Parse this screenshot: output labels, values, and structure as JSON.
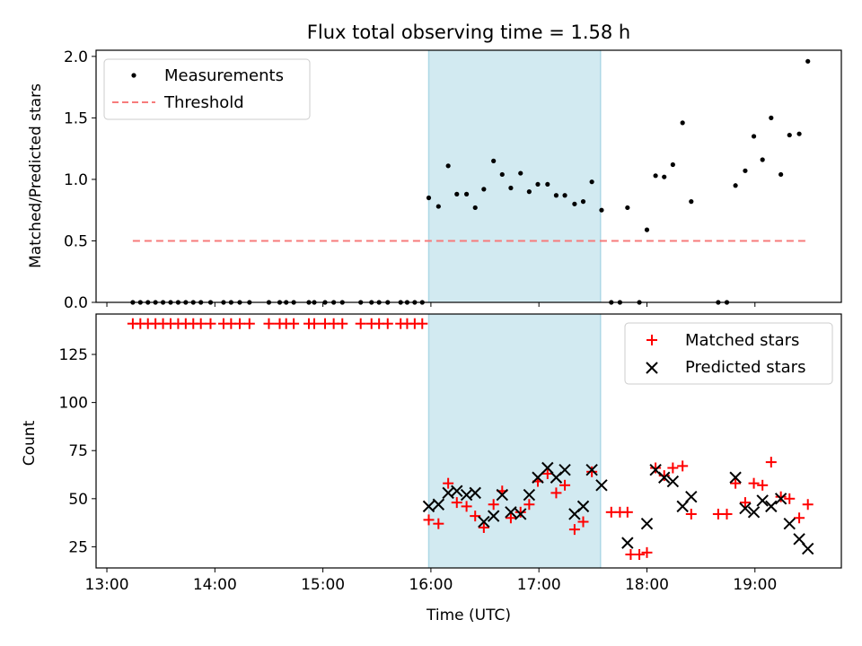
{
  "chart_data": [
    {
      "type": "scatter",
      "title": "Flux total observing time = 1.58 h",
      "xlabel": "",
      "ylabel": "Matched/Predicted stars",
      "xlim": [
        12.9,
        19.8
      ],
      "ylim": [
        0,
        2.05
      ],
      "yticks": [
        0,
        0.5,
        1.0,
        1.5,
        2.0
      ],
      "ytick_labels": [
        "0.0",
        "0.5",
        "1.0",
        "1.5",
        "2.0"
      ],
      "shaded_span": [
        15.98,
        17.57
      ],
      "threshold": {
        "name": "Threshold",
        "value": 0.5,
        "x_range": [
          13.24,
          19.5
        ],
        "color": "#f77b7b"
      },
      "legend": {
        "placement": "top-left",
        "entries": [
          "Measurements",
          "Threshold"
        ]
      },
      "series": [
        {
          "name": "Measurements",
          "marker": "dot",
          "color": "#000000",
          "points": [
            [
              13.24,
              0
            ],
            [
              13.31,
              0
            ],
            [
              13.38,
              0
            ],
            [
              13.45,
              0
            ],
            [
              13.52,
              0
            ],
            [
              13.59,
              0
            ],
            [
              13.66,
              0
            ],
            [
              13.73,
              0
            ],
            [
              13.8,
              0
            ],
            [
              13.87,
              0
            ],
            [
              13.96,
              0
            ],
            [
              14.08,
              0
            ],
            [
              14.15,
              0
            ],
            [
              14.23,
              0
            ],
            [
              14.32,
              0
            ],
            [
              14.5,
              0
            ],
            [
              14.6,
              0
            ],
            [
              14.66,
              0
            ],
            [
              14.73,
              0
            ],
            [
              14.87,
              0
            ],
            [
              14.92,
              0
            ],
            [
              15.02,
              0
            ],
            [
              15.1,
              0
            ],
            [
              15.18,
              0
            ],
            [
              15.35,
              0
            ],
            [
              15.45,
              0
            ],
            [
              15.52,
              0
            ],
            [
              15.6,
              0
            ],
            [
              15.72,
              0
            ],
            [
              15.78,
              0
            ],
            [
              15.85,
              0
            ],
            [
              15.92,
              0
            ],
            [
              15.98,
              0.85
            ],
            [
              16.07,
              0.78
            ],
            [
              16.16,
              1.11
            ],
            [
              16.24,
              0.88
            ],
            [
              16.33,
              0.88
            ],
            [
              16.41,
              0.77
            ],
            [
              16.49,
              0.92
            ],
            [
              16.58,
              1.15
            ],
            [
              16.66,
              1.04
            ],
            [
              16.74,
              0.93
            ],
            [
              16.83,
              1.05
            ],
            [
              16.91,
              0.9
            ],
            [
              16.99,
              0.96
            ],
            [
              17.08,
              0.96
            ],
            [
              17.16,
              0.87
            ],
            [
              17.24,
              0.87
            ],
            [
              17.33,
              0.8
            ],
            [
              17.41,
              0.82
            ],
            [
              17.49,
              0.98
            ],
            [
              17.58,
              0.75
            ],
            [
              17.67,
              0
            ],
            [
              17.75,
              0
            ],
            [
              17.82,
              0.77
            ],
            [
              17.93,
              0
            ],
            [
              18.0,
              0.59
            ],
            [
              18.08,
              1.03
            ],
            [
              18.16,
              1.02
            ],
            [
              18.24,
              1.12
            ],
            [
              18.33,
              1.46
            ],
            [
              18.41,
              0.82
            ],
            [
              18.66,
              0
            ],
            [
              18.74,
              0
            ],
            [
              18.82,
              0.95
            ],
            [
              18.91,
              1.07
            ],
            [
              18.99,
              1.35
            ],
            [
              19.07,
              1.16
            ],
            [
              19.15,
              1.5
            ],
            [
              19.24,
              1.04
            ],
            [
              19.32,
              1.36
            ],
            [
              19.41,
              1.37
            ],
            [
              19.49,
              1.96
            ]
          ]
        }
      ]
    },
    {
      "type": "scatter",
      "title": "",
      "xlabel": "Time (UTC)",
      "ylabel": "Count",
      "xlim": [
        12.9,
        19.8
      ],
      "ylim": [
        14,
        146
      ],
      "yticks": [
        25,
        50,
        75,
        100,
        125
      ],
      "ytick_labels": [
        "25",
        "50",
        "75",
        "100",
        "125"
      ],
      "xticks": [
        13,
        14,
        15,
        16,
        17,
        18,
        19
      ],
      "xtick_labels": [
        "13:00",
        "14:00",
        "15:00",
        "16:00",
        "17:00",
        "18:00",
        "19:00"
      ],
      "shaded_span": [
        15.98,
        17.57
      ],
      "legend": {
        "placement": "top-right",
        "entries": [
          "Matched stars",
          "Predicted stars"
        ]
      },
      "series": [
        {
          "name": "Matched stars",
          "marker": "plus",
          "color": "#ff0000",
          "points": [
            [
              13.24,
              141
            ],
            [
              13.31,
              141
            ],
            [
              13.38,
              141
            ],
            [
              13.45,
              141
            ],
            [
              13.52,
              141
            ],
            [
              13.59,
              141
            ],
            [
              13.66,
              141
            ],
            [
              13.73,
              141
            ],
            [
              13.8,
              141
            ],
            [
              13.87,
              141
            ],
            [
              13.96,
              141
            ],
            [
              14.08,
              141
            ],
            [
              14.15,
              141
            ],
            [
              14.23,
              141
            ],
            [
              14.32,
              141
            ],
            [
              14.5,
              141
            ],
            [
              14.6,
              141
            ],
            [
              14.66,
              141
            ],
            [
              14.73,
              141
            ],
            [
              14.87,
              141
            ],
            [
              14.92,
              141
            ],
            [
              15.02,
              141
            ],
            [
              15.1,
              141
            ],
            [
              15.18,
              141
            ],
            [
              15.35,
              141
            ],
            [
              15.45,
              141
            ],
            [
              15.52,
              141
            ],
            [
              15.6,
              141
            ],
            [
              15.72,
              141
            ],
            [
              15.78,
              141
            ],
            [
              15.85,
              141
            ],
            [
              15.92,
              141
            ],
            [
              15.98,
              39
            ],
            [
              16.07,
              37
            ],
            [
              16.16,
              58
            ],
            [
              16.24,
              48
            ],
            [
              16.33,
              46
            ],
            [
              16.41,
              41
            ],
            [
              16.49,
              35
            ],
            [
              16.58,
              47
            ],
            [
              16.66,
              54
            ],
            [
              16.74,
              40
            ],
            [
              16.83,
              43
            ],
            [
              16.91,
              47
            ],
            [
              16.99,
              59
            ],
            [
              17.08,
              63
            ],
            [
              17.16,
              53
            ],
            [
              17.24,
              57
            ],
            [
              17.33,
              34
            ],
            [
              17.41,
              38
            ],
            [
              17.49,
              64
            ],
            [
              17.67,
              43
            ],
            [
              17.75,
              43
            ],
            [
              17.82,
              43
            ],
            [
              17.85,
              21
            ],
            [
              17.93,
              21
            ],
            [
              18.0,
              22
            ],
            [
              18.08,
              66
            ],
            [
              18.16,
              62
            ],
            [
              18.24,
              66
            ],
            [
              18.33,
              67
            ],
            [
              18.41,
              42
            ],
            [
              18.66,
              42
            ],
            [
              18.74,
              42
            ],
            [
              18.82,
              58
            ],
            [
              18.91,
              48
            ],
            [
              18.99,
              58
            ],
            [
              19.07,
              57
            ],
            [
              19.15,
              69
            ],
            [
              19.24,
              51
            ],
            [
              19.32,
              50
            ],
            [
              19.41,
              40
            ],
            [
              19.49,
              47
            ]
          ]
        },
        {
          "name": "Predicted stars",
          "marker": "x",
          "color": "#000000",
          "points": [
            [
              15.98,
              46
            ],
            [
              16.07,
              47
            ],
            [
              16.16,
              53
            ],
            [
              16.24,
              54
            ],
            [
              16.33,
              52
            ],
            [
              16.41,
              53
            ],
            [
              16.49,
              38
            ],
            [
              16.58,
              41
            ],
            [
              16.66,
              52
            ],
            [
              16.74,
              43
            ],
            [
              16.83,
              42
            ],
            [
              16.91,
              52
            ],
            [
              16.99,
              61
            ],
            [
              17.08,
              66
            ],
            [
              17.16,
              61
            ],
            [
              17.24,
              65
            ],
            [
              17.33,
              42
            ],
            [
              17.41,
              46
            ],
            [
              17.49,
              65
            ],
            [
              17.58,
              57
            ],
            [
              17.82,
              27
            ],
            [
              18.0,
              37
            ],
            [
              18.08,
              65
            ],
            [
              18.16,
              61
            ],
            [
              18.24,
              59
            ],
            [
              18.33,
              46
            ],
            [
              18.41,
              51
            ],
            [
              18.82,
              61
            ],
            [
              18.91,
              45
            ],
            [
              18.99,
              43
            ],
            [
              19.07,
              49
            ],
            [
              19.15,
              46
            ],
            [
              19.24,
              50
            ],
            [
              19.32,
              37
            ],
            [
              19.41,
              29
            ],
            [
              19.49,
              24
            ]
          ]
        }
      ]
    }
  ],
  "styles": {
    "shade_color": "#add8e6",
    "axis_color": "#000000"
  }
}
